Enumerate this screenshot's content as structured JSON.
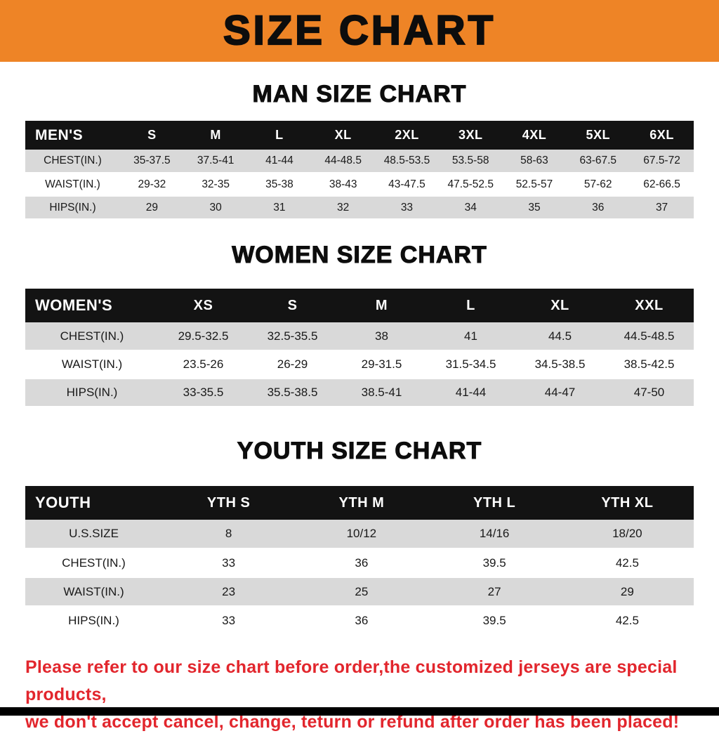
{
  "banner": {
    "title": "SIZE CHART"
  },
  "chart_data": [
    {
      "type": "table",
      "title": "MAN SIZE CHART",
      "columns": [
        "MEN'S",
        "S",
        "M",
        "L",
        "XL",
        "2XL",
        "3XL",
        "4XL",
        "5XL",
        "6XL"
      ],
      "rows": [
        [
          "CHEST(IN.)",
          "35-37.5",
          "37.5-41",
          "41-44",
          "44-48.5",
          "48.5-53.5",
          "53.5-58",
          "58-63",
          "63-67.5",
          "67.5-72"
        ],
        [
          "WAIST(IN.)",
          "29-32",
          "32-35",
          "35-38",
          "38-43",
          "43-47.5",
          "47.5-52.5",
          "52.5-57",
          "57-62",
          "62-66.5"
        ],
        [
          "HIPS(IN.)",
          "29",
          "30",
          "31",
          "32",
          "33",
          "34",
          "35",
          "36",
          "37"
        ]
      ]
    },
    {
      "type": "table",
      "title": "WOMEN SIZE CHART",
      "columns": [
        "WOMEN'S",
        "XS",
        "S",
        "M",
        "L",
        "XL",
        "XXL"
      ],
      "rows": [
        [
          "CHEST(IN.)",
          "29.5-32.5",
          "32.5-35.5",
          "38",
          "41",
          "44.5",
          "44.5-48.5"
        ],
        [
          "WAIST(IN.)",
          "23.5-26",
          "26-29",
          "29-31.5",
          "31.5-34.5",
          "34.5-38.5",
          "38.5-42.5"
        ],
        [
          "HIPS(IN.)",
          "33-35.5",
          "35.5-38.5",
          "38.5-41",
          "41-44",
          "44-47",
          "47-50"
        ]
      ]
    },
    {
      "type": "table",
      "title": "YOUTH SIZE CHART",
      "columns": [
        "YOUTH",
        "YTH S",
        "YTH M",
        "YTH L",
        "YTH XL"
      ],
      "rows": [
        [
          "U.S.SIZE",
          "8",
          "10/12",
          "14/16",
          "18/20"
        ],
        [
          "CHEST(IN.)",
          "33",
          "36",
          "39.5",
          "42.5"
        ],
        [
          "WAIST(IN.)",
          "23",
          "25",
          "27",
          "29"
        ],
        [
          "HIPS(IN.)",
          "33",
          "36",
          "39.5",
          "42.5"
        ]
      ]
    }
  ],
  "disclaimer": {
    "line1": "Please refer to our size chart before order,the customized jerseys are special products,",
    "line2": "we don't accept cancel, change, teturn or refund after order has been placed!"
  },
  "colors": {
    "banner_bg": "#EE8426",
    "header_bg": "#131313",
    "stripe_bg": "#D9D9D9",
    "disclaimer_red": "#E2262D"
  }
}
